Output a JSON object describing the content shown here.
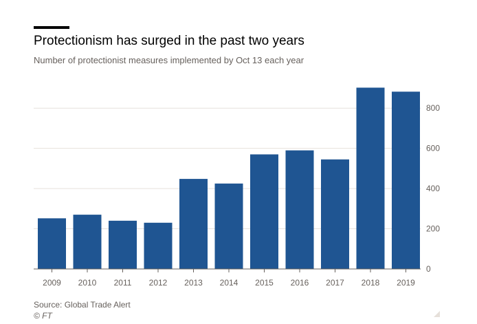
{
  "header": {
    "title": "Protectionism has surged in the past two years",
    "subtitle": "Number of protectionist measures implemented by Oct 13 each year"
  },
  "footer": {
    "source": "Source: Global Trade Alert",
    "credit": "© FT"
  },
  "chart_data": {
    "type": "bar",
    "title": "Protectionism has surged in the past two years",
    "subtitle": "Number of protectionist measures implemented by Oct 13 each year",
    "categories": [
      "2009",
      "2010",
      "2011",
      "2012",
      "2013",
      "2014",
      "2015",
      "2016",
      "2017",
      "2018",
      "2019"
    ],
    "values": [
      252,
      270,
      240,
      230,
      448,
      425,
      570,
      590,
      545,
      902,
      882
    ],
    "ylim": [
      0,
      900
    ],
    "yticks": [
      0,
      200,
      400,
      600,
      800
    ],
    "y_axis_side": "right",
    "grid": true,
    "bar_color": "#1f5592",
    "grid_color": "#e6e1dc"
  }
}
